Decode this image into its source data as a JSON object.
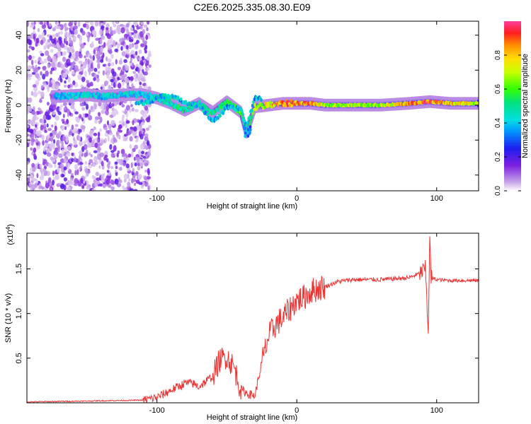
{
  "title": "C2E6.2025.335.08.30.E09",
  "chart_data": [
    {
      "type": "heatmap",
      "name": "spectrogram",
      "title": "C2E6.2025.335.08.30.E09",
      "xlabel": "Height of straight line (km)",
      "ylabel": "Frequency (Hz)",
      "xlim": [
        -193,
        130
      ],
      "ylim": [
        -49,
        48
      ],
      "xticks": [
        -100,
        0,
        100
      ],
      "xtick_labels": [
        "-100",
        "0",
        "100"
      ],
      "yticks": [
        -40,
        -20,
        0,
        20,
        40
      ],
      "ytick_labels": [
        "-40",
        "-20",
        "0",
        "20",
        "40"
      ],
      "noise_region_x": [
        -193,
        -105
      ],
      "trace": [
        {
          "x": -170,
          "freq": 5,
          "amp": 0.4
        },
        {
          "x": -150,
          "freq": 6,
          "amp": 0.45
        },
        {
          "x": -140,
          "freq": 5,
          "amp": 0.42
        },
        {
          "x": -120,
          "freq": 6,
          "amp": 0.45
        },
        {
          "x": -110,
          "freq": 6,
          "amp": 0.42
        },
        {
          "x": -100,
          "freq": 4,
          "amp": 0.5
        },
        {
          "x": -90,
          "freq": 1,
          "amp": 0.52
        },
        {
          "x": -80,
          "freq": -3,
          "amp": 0.55
        },
        {
          "x": -70,
          "freq": 1,
          "amp": 0.48
        },
        {
          "x": -60,
          "freq": -4,
          "amp": 0.52
        },
        {
          "x": -50,
          "freq": 2,
          "amp": 0.55
        },
        {
          "x": -40,
          "freq": -4,
          "amp": 0.62
        },
        {
          "x": -36,
          "freq": -16,
          "amp": 0.4
        },
        {
          "x": -30,
          "freq": -1,
          "amp": 0.7
        },
        {
          "x": -20,
          "freq": 0,
          "amp": 0.8
        },
        {
          "x": -10,
          "freq": 1,
          "amp": 0.9
        },
        {
          "x": 0,
          "freq": 1,
          "amp": 0.92
        },
        {
          "x": 10,
          "freq": 1,
          "amp": 0.88
        },
        {
          "x": 20,
          "freq": 0,
          "amp": 0.75
        },
        {
          "x": 40,
          "freq": 0,
          "amp": 0.72
        },
        {
          "x": 60,
          "freq": 0,
          "amp": 0.72
        },
        {
          "x": 80,
          "freq": 1,
          "amp": 0.9
        },
        {
          "x": 95,
          "freq": 2,
          "amp": 0.95
        },
        {
          "x": 110,
          "freq": 1,
          "amp": 0.85
        },
        {
          "x": 130,
          "freq": 1,
          "amp": 0.75
        }
      ]
    },
    {
      "type": "line",
      "name": "snr",
      "xlabel": "Height of straight line (km)",
      "ylabel": "SNR (10 * v/v)",
      "y_multiplier_label": "(x10",
      "y_multiplier_exponent": "4",
      "color": "#ee3333",
      "xlim": [
        -193,
        130
      ],
      "ylim": [
        0,
        1.9
      ],
      "xticks": [
        -100,
        0,
        100
      ],
      "xtick_labels": [
        "-100",
        "0",
        "100"
      ],
      "yticks": [
        0.5,
        1.0,
        1.5
      ],
      "ytick_labels": [
        "0.5",
        "1.0",
        "1.5"
      ],
      "x": [
        -193,
        -150,
        -110,
        -100,
        -90,
        -80,
        -75,
        -70,
        -60,
        -55,
        -50,
        -45,
        -40,
        -35,
        -30,
        -25,
        -20,
        -15,
        -10,
        -5,
        0,
        5,
        10,
        15,
        20,
        30,
        40,
        50,
        60,
        70,
        80,
        88,
        92,
        94,
        95,
        96,
        100,
        110,
        120,
        130
      ],
      "y": [
        0.01,
        0.02,
        0.03,
        0.06,
        0.14,
        0.22,
        0.22,
        0.18,
        0.3,
        0.48,
        0.52,
        0.4,
        0.15,
        0.1,
        0.08,
        0.45,
        0.75,
        0.88,
        0.95,
        1.05,
        1.15,
        1.18,
        1.25,
        1.28,
        1.3,
        1.36,
        1.38,
        1.38,
        1.38,
        1.39,
        1.4,
        1.45,
        1.5,
        0.8,
        1.85,
        1.4,
        1.38,
        1.37,
        1.37,
        1.37
      ]
    }
  ],
  "colorbar": {
    "label": "Normalized spectral amplitude",
    "range": [
      0,
      1
    ],
    "ticks": [
      0.0,
      0.2,
      0.4,
      0.6,
      0.8
    ],
    "tick_labels": [
      "0.0",
      "0.2",
      "0.4",
      "0.6",
      "0.8"
    ]
  }
}
